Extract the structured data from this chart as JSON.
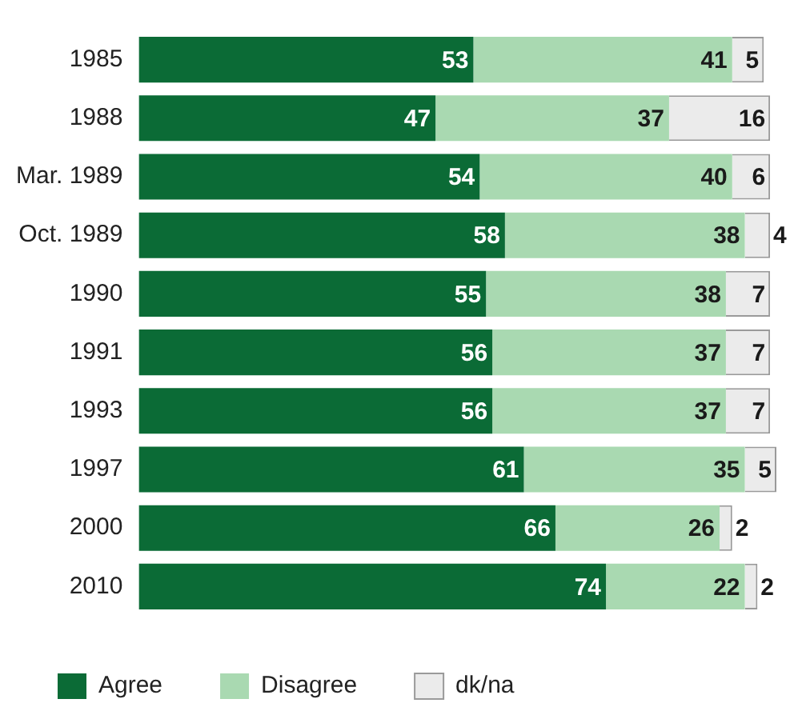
{
  "chart_data": {
    "type": "bar",
    "orientation": "horizontal",
    "stacked": true,
    "categories": [
      "1985",
      "1988",
      "Mar. 1989",
      "Oct. 1989",
      "1990",
      "1991",
      "1993",
      "1997",
      "2000",
      "2010"
    ],
    "series": [
      {
        "name": "Agree",
        "color": "#0b6b36",
        "values": [
          53,
          47,
          54,
          58,
          55,
          56,
          56,
          61,
          66,
          74
        ]
      },
      {
        "name": "Disagree",
        "color": "#a9d9b1",
        "values": [
          41,
          37,
          40,
          38,
          38,
          37,
          37,
          35,
          26,
          22
        ]
      },
      {
        "name": "dk/na",
        "color": "#ebebeb",
        "values": [
          5,
          16,
          6,
          4,
          7,
          7,
          7,
          5,
          2,
          2
        ]
      }
    ],
    "tick_labels": "y",
    "data_labels": true,
    "legend": "bottom",
    "grid": false
  }
}
